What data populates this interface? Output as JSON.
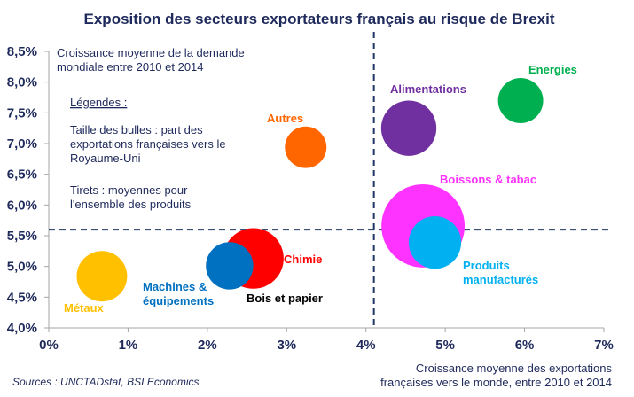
{
  "chart_data": {
    "type": "scatter",
    "subtype": "bubble",
    "title": "Exposition des secteurs exportateurs français au risque de Brexit",
    "ylabel": "Croissance moyenne de la demande mondiale entre 2010 et 2014",
    "ylabel_lines": [
      "Croissance moyenne de la demande",
      "mondiale entre 2010 et 2014"
    ],
    "xlabel": "Croissance moyenne des exportations françaises vers le monde, entre 2010 et 2014",
    "xlabel_lines": [
      "Croissance moyenne des exportations",
      "françaises vers le monde, entre 2010 et 2014"
    ],
    "xlim": [
      0,
      7
    ],
    "ylim": [
      4.0,
      8.5
    ],
    "x_ticks": [
      "0%",
      "1%",
      "2%",
      "3%",
      "4%",
      "5%",
      "6%",
      "7%"
    ],
    "x_tick_values": [
      0,
      1,
      2,
      3,
      4,
      5,
      6,
      7
    ],
    "y_ticks": [
      "4,0%",
      "4,5%",
      "5,0%",
      "5,5%",
      "6,0%",
      "6,5%",
      "7,0%",
      "7,5%",
      "8,0%",
      "8,5%"
    ],
    "y_tick_values": [
      4.0,
      4.5,
      5.0,
      5.5,
      6.0,
      6.5,
      7.0,
      7.5,
      8.0,
      8.5
    ],
    "grid": false,
    "reference_lines": {
      "x_mean": 4.1,
      "y_mean": 5.6,
      "style": "dashed",
      "color": "#1f3864"
    },
    "legend_notes": {
      "title": "Légendes :",
      "size_note_lines": [
        "Taille des bulles : part des",
        "exportations françaises vers le",
        "Royaume-Uni"
      ],
      "dash_note_lines": [
        "Tirets : moyennes pour",
        "l'ensemble des produits"
      ]
    },
    "series": [
      {
        "name": "Métaux",
        "x": 0.67,
        "y": 4.84,
        "size": 2.5,
        "color": "#ffc000",
        "label_lines": [
          "Métaux"
        ],
        "label_pos": "below-left"
      },
      {
        "name": "Bois et papier",
        "x": 2.35,
        "y": 4.78,
        "size": 0.2,
        "color": "#000000",
        "label_lines": [
          "Bois et papier"
        ],
        "label_pos": "below-right"
      },
      {
        "name": "Chimie",
        "x": 2.58,
        "y": 5.13,
        "size": 3.6,
        "color": "#ff0000",
        "label_lines": [
          "Chimie"
        ],
        "label_pos": "right"
      },
      {
        "name": "Machines & équipements",
        "x": 2.28,
        "y": 5.01,
        "size": 2.2,
        "color": "#0070c0",
        "label_lines": [
          "Machines &",
          "équipements"
        ],
        "label_pos": "below-left"
      },
      {
        "name": "Autres",
        "x": 3.24,
        "y": 6.94,
        "size": 1.7,
        "color": "#ff6600",
        "label_lines": [
          "Autres"
        ],
        "label_pos": "above-left"
      },
      {
        "name": "Alimentations",
        "x": 4.54,
        "y": 7.25,
        "size": 3.0,
        "color": "#7030a0",
        "label_lines": [
          "Alimentations"
        ],
        "label_pos": "above-right"
      },
      {
        "name": "Energies",
        "x": 5.95,
        "y": 7.7,
        "size": 2.0,
        "color": "#00b050",
        "label_lines": [
          "Energies"
        ],
        "label_pos": "above-right"
      },
      {
        "name": "Boissons & tabac",
        "x": 4.72,
        "y": 5.66,
        "size": 6.8,
        "color": "#ff33ff",
        "label_lines": [
          "Boissons & tabac"
        ],
        "label_pos": "above-right"
      },
      {
        "name": "Produits manufacturés",
        "x": 4.87,
        "y": 5.39,
        "size": 2.7,
        "color": "#00b0f0",
        "label_lines": [
          "Produits",
          "manufacturés"
        ],
        "label_pos": "below-right"
      }
    ]
  },
  "source": "Sources : UNCTADstat, BSI Economics"
}
